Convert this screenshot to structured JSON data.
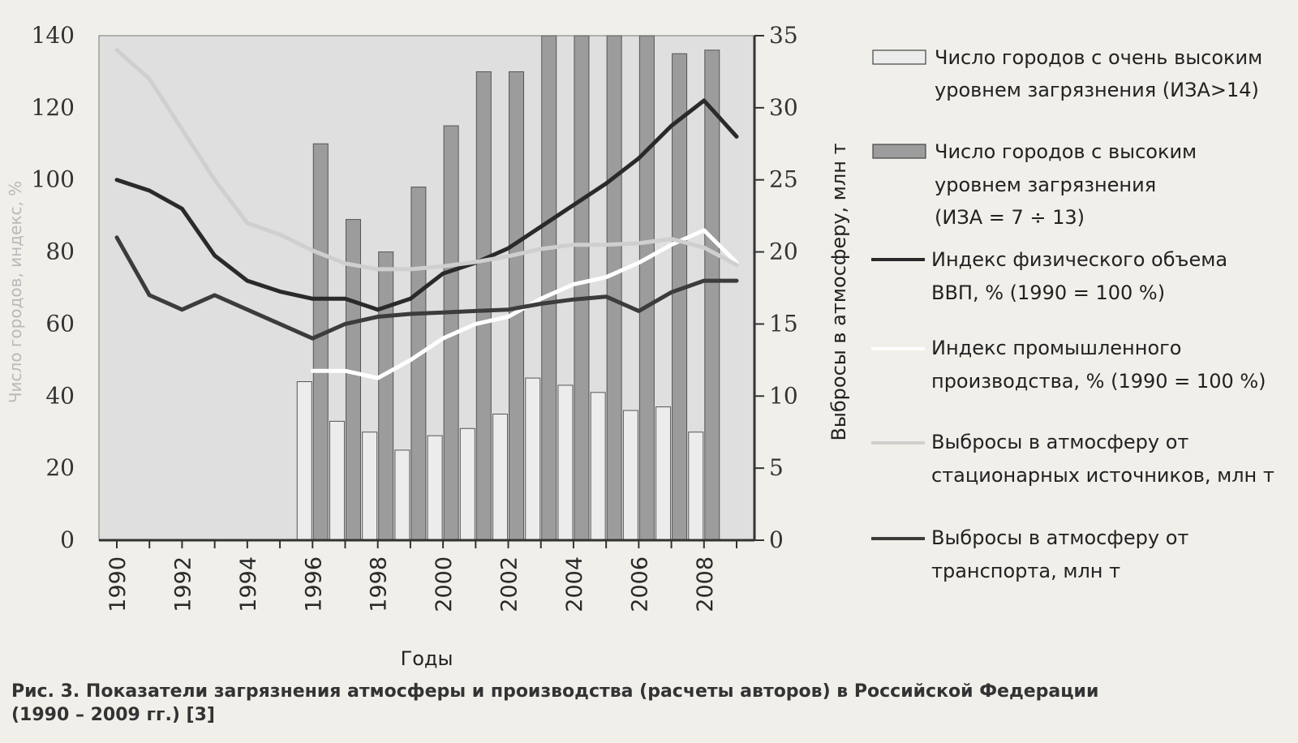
{
  "caption": {
    "line1": "Рис. 3. Показатели загрязнения атмосферы и производства (расчеты авторов) в Российской Федерации",
    "line2": "(1990 – 2009 гг.) [3]"
  },
  "chart_data": {
    "type": "bar",
    "xlabel": "Годы",
    "ylabel_left": "Число городов, индекс, %",
    "ylabel_right": "Выбросы в атмосферу, млн т",
    "ylim_left": [
      0,
      140
    ],
    "ylim_right": [
      0,
      35
    ],
    "yticks_left": [
      "0",
      "20",
      "40",
      "60",
      "80",
      "100",
      "120",
      "140"
    ],
    "yticks_right": [
      "0",
      "5",
      "10",
      "15",
      "20",
      "25",
      "30",
      "35"
    ],
    "x": [
      1990,
      1991,
      1992,
      1993,
      1994,
      1995,
      1996,
      1997,
      1998,
      1999,
      2000,
      2001,
      2002,
      2003,
      2004,
      2005,
      2006,
      2007,
      2008,
      2009
    ],
    "xtick_labels": [
      "1990",
      "1992",
      "1994",
      "1996",
      "1998",
      "2000",
      "2002",
      "2004",
      "2006",
      "2008"
    ],
    "legend_position": "right",
    "grid": false,
    "bar_series": [
      {
        "name": "Число городов с очень высоким уровнем загрязнения (ИЗА>14)",
        "axis": "left",
        "color": "#ececec",
        "values": [
          null,
          null,
          null,
          null,
          null,
          null,
          44,
          33,
          30,
          25,
          29,
          31,
          35,
          45,
          43,
          41,
          36,
          37,
          30,
          null
        ]
      },
      {
        "name": "Число городов с высоким уровнем загрязнения (ИЗА = 7 ÷ 13)",
        "axis": "left",
        "color": "#9c9c9c",
        "values": [
          null,
          null,
          null,
          null,
          null,
          null,
          110,
          89,
          80,
          98,
          115,
          130,
          130,
          140,
          140,
          140,
          140,
          135,
          136,
          null
        ]
      }
    ],
    "line_series": [
      {
        "name": "Индекс физического объема ВВП, % (1990 = 100 %)",
        "axis": "left",
        "color": "#2a2a2a",
        "values": [
          100,
          97,
          92,
          79,
          72,
          69,
          67,
          67,
          64,
          67,
          74,
          77,
          81,
          87,
          93,
          99,
          106,
          115,
          122,
          112
        ]
      },
      {
        "name": "Индекс промышленного производства, % (1990 = 100 %)",
        "axis": "left",
        "color": "#ffffff",
        "values": [
          null,
          null,
          null,
          null,
          null,
          null,
          47,
          47,
          45,
          50,
          56,
          60,
          62,
          67,
          71,
          73,
          77,
          82,
          86,
          77
        ]
      },
      {
        "name": "Выбросы в атмосферу от стационарных источников, млн т",
        "axis": "right",
        "color": "#cfcfcf",
        "values": [
          34,
          32,
          28.5,
          25,
          22,
          21.2,
          20.1,
          19.2,
          18.8,
          18.8,
          19,
          19.3,
          19.7,
          20.2,
          20.5,
          20.5,
          20.6,
          20.9,
          20.3,
          19.1
        ]
      },
      {
        "name": "Выбросы в атмосферу от транспорта, млн т",
        "axis": "right",
        "color": "#3c3c3c",
        "values": [
          21,
          17,
          16,
          17,
          16,
          15,
          14,
          15,
          15.5,
          15.7,
          15.8,
          15.9,
          16,
          16.4,
          16.7,
          16.9,
          15.9,
          17.2,
          18,
          18
        ]
      }
    ],
    "legend": {
      "very_high_line1": "Число городов с очень высоким",
      "very_high_line2": "уровнем загрязнения (ИЗА>14)",
      "high_line1": "Число городов с высоким",
      "high_line2": "уровнем загрязнения",
      "high_line3": "(ИЗА = 7 ÷ 13)",
      "gdp_line1": "Индекс физического объема",
      "gdp_line2": "ВВП, % (1990 = 100 %)",
      "ind_line1": "Индекс промышленного",
      "ind_line2": "производства, % (1990 = 100 %)",
      "stat_line1": "Выбросы в атмосферу от",
      "stat_line2": "стационарных источников, млн т",
      "trans_line1": "Выбросы в атмосферу от",
      "trans_line2": "транспорта, млн т"
    }
  }
}
